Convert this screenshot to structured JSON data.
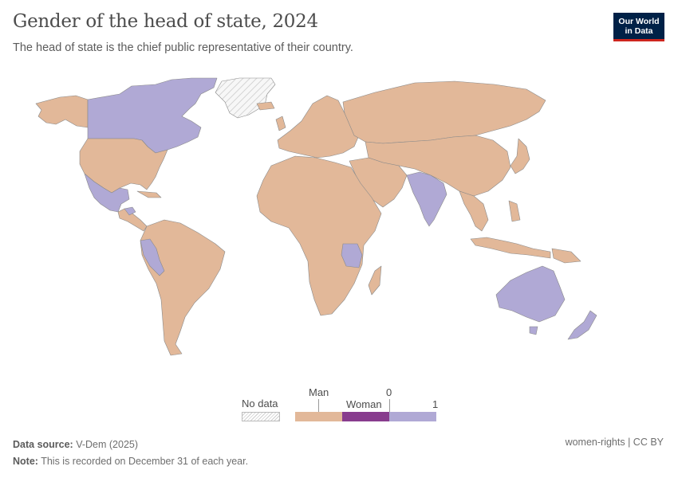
{
  "header": {
    "title": "Gender of the head of state, 2024",
    "subtitle": "The head of state is the chief public representative of their country.",
    "logo_line1": "Our World",
    "logo_line2": "in Data"
  },
  "legend": {
    "no_data_label": "No data",
    "man_label": "Man",
    "woman_label": "Woman",
    "zero_label": "0",
    "one_label": "1"
  },
  "colors": {
    "man": "#e2b899",
    "woman": "#883c8e",
    "value_one": "#b0a9d5",
    "no_data": "#f2f2f2",
    "border": "#8a8a8a"
  },
  "chart_data": {
    "type": "choropleth",
    "categories": [
      {
        "name": "Man",
        "color": "#e2b899"
      },
      {
        "name": "Woman",
        "color": "#883c8e"
      },
      {
        "name": "1",
        "color": "#b0a9d5"
      }
    ],
    "no_data_regions": [
      "Greenland"
    ],
    "highlighted_regions": [
      "Canada",
      "Mexico",
      "Peru",
      "India",
      "Tanzania",
      "Australia",
      "New Zealand",
      "Honduras"
    ]
  },
  "footer": {
    "source_label": "Data source:",
    "source_value": "V-Dem (2025)",
    "note_label": "Note:",
    "note_value": "This is recorded on December 31 of each year.",
    "topic": "women-rights | CC BY"
  }
}
